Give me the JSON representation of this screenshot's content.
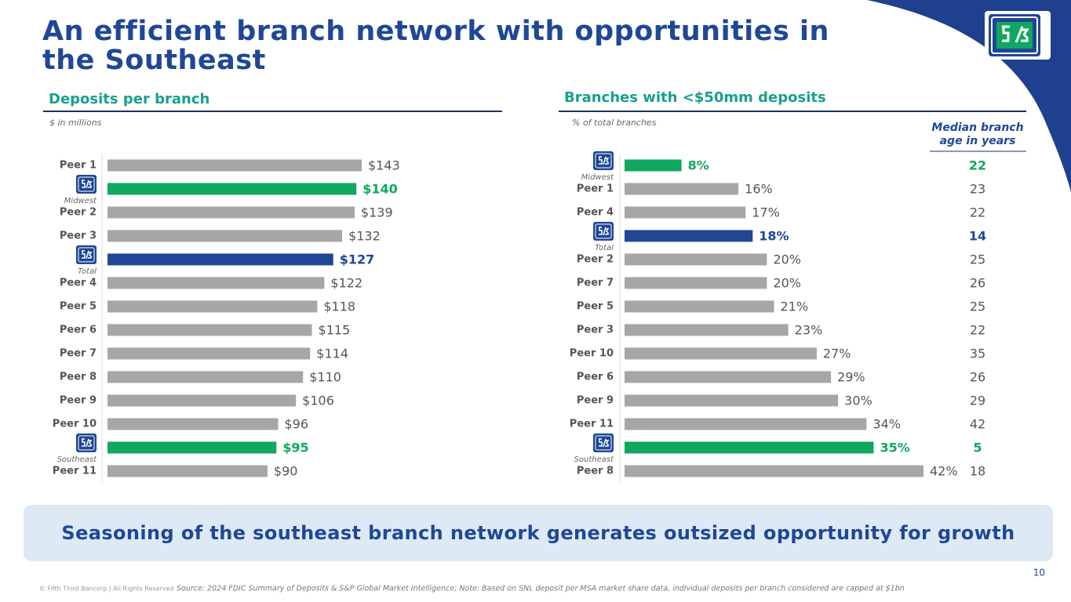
{
  "title": "An efficient branch network with opportunities in the Southeast",
  "banner": "Seasoning of the southeast branch network generates outsized opportunity for growth",
  "footer": "© Fifth Third Bancorp | All Rights Reserved",
  "source": "Source: 2024 FDIC Summary of Deposits & S&P Global Market Intelligence; Note: Based on SNL deposit per MSA market share data, individual deposits per branch considered are capped at $1bn",
  "page_number": "10",
  "chart_data": [
    {
      "type": "bar",
      "orientation": "horizontal",
      "title": "Deposits per branch",
      "subtitle": "$ in millions",
      "categories": [
        "Peer 1",
        "Midwest",
        "Peer 2",
        "Peer 3",
        "Total",
        "Peer 4",
        "Peer 5",
        "Peer 6",
        "Peer 7",
        "Peer 8",
        "Peer 9",
        "Peer 10",
        "Southeast",
        "Peer 11"
      ],
      "values": [
        143,
        140,
        139,
        132,
        127,
        122,
        118,
        115,
        114,
        110,
        106,
        96,
        95,
        90
      ],
      "value_labels": [
        "$143",
        "$140",
        "$139",
        "$132",
        "$127",
        "$122",
        "$118",
        "$115",
        "$114",
        "$110",
        "$106",
        "$96",
        "$95",
        "$90"
      ],
      "colors": [
        "#a6a6a6",
        "#10a760",
        "#a6a6a6",
        "#a6a6a6",
        "#1f4796",
        "#a6a6a6",
        "#a6a6a6",
        "#a6a6a6",
        "#a6a6a6",
        "#a6a6a6",
        "#a6a6a6",
        "#a6a6a6",
        "#10a760",
        "#a6a6a6"
      ]
    },
    {
      "type": "bar",
      "orientation": "horizontal",
      "title": "Branches with <$50mm deposits",
      "subtitle": "% of total branches",
      "categories": [
        "Midwest",
        "Peer 1",
        "Peer 4",
        "Total",
        "Peer 2",
        "Peer 7",
        "Peer 5",
        "Peer 3",
        "Peer 10",
        "Peer 6",
        "Peer 9",
        "Peer 11",
        "Southeast",
        "Peer 8"
      ],
      "values": [
        8,
        16,
        17,
        18,
        20,
        20,
        21,
        23,
        27,
        29,
        30,
        34,
        35,
        42
      ],
      "value_labels": [
        "8%",
        "16%",
        "17%",
        "18%",
        "20%",
        "20%",
        "21%",
        "23%",
        "27%",
        "29%",
        "30%",
        "34%",
        "35%",
        "42%"
      ],
      "colors": [
        "#10a760",
        "#a6a6a6",
        "#a6a6a6",
        "#1f4796",
        "#a6a6a6",
        "#a6a6a6",
        "#a6a6a6",
        "#a6a6a6",
        "#a6a6a6",
        "#a6a6a6",
        "#a6a6a6",
        "#a6a6a6",
        "#10a760",
        "#a6a6a6"
      ],
      "ages_title": "Median branch age in years",
      "ages": [
        22,
        23,
        22,
        14,
        25,
        26,
        25,
        22,
        35,
        26,
        29,
        42,
        5,
        18
      ]
    }
  ]
}
